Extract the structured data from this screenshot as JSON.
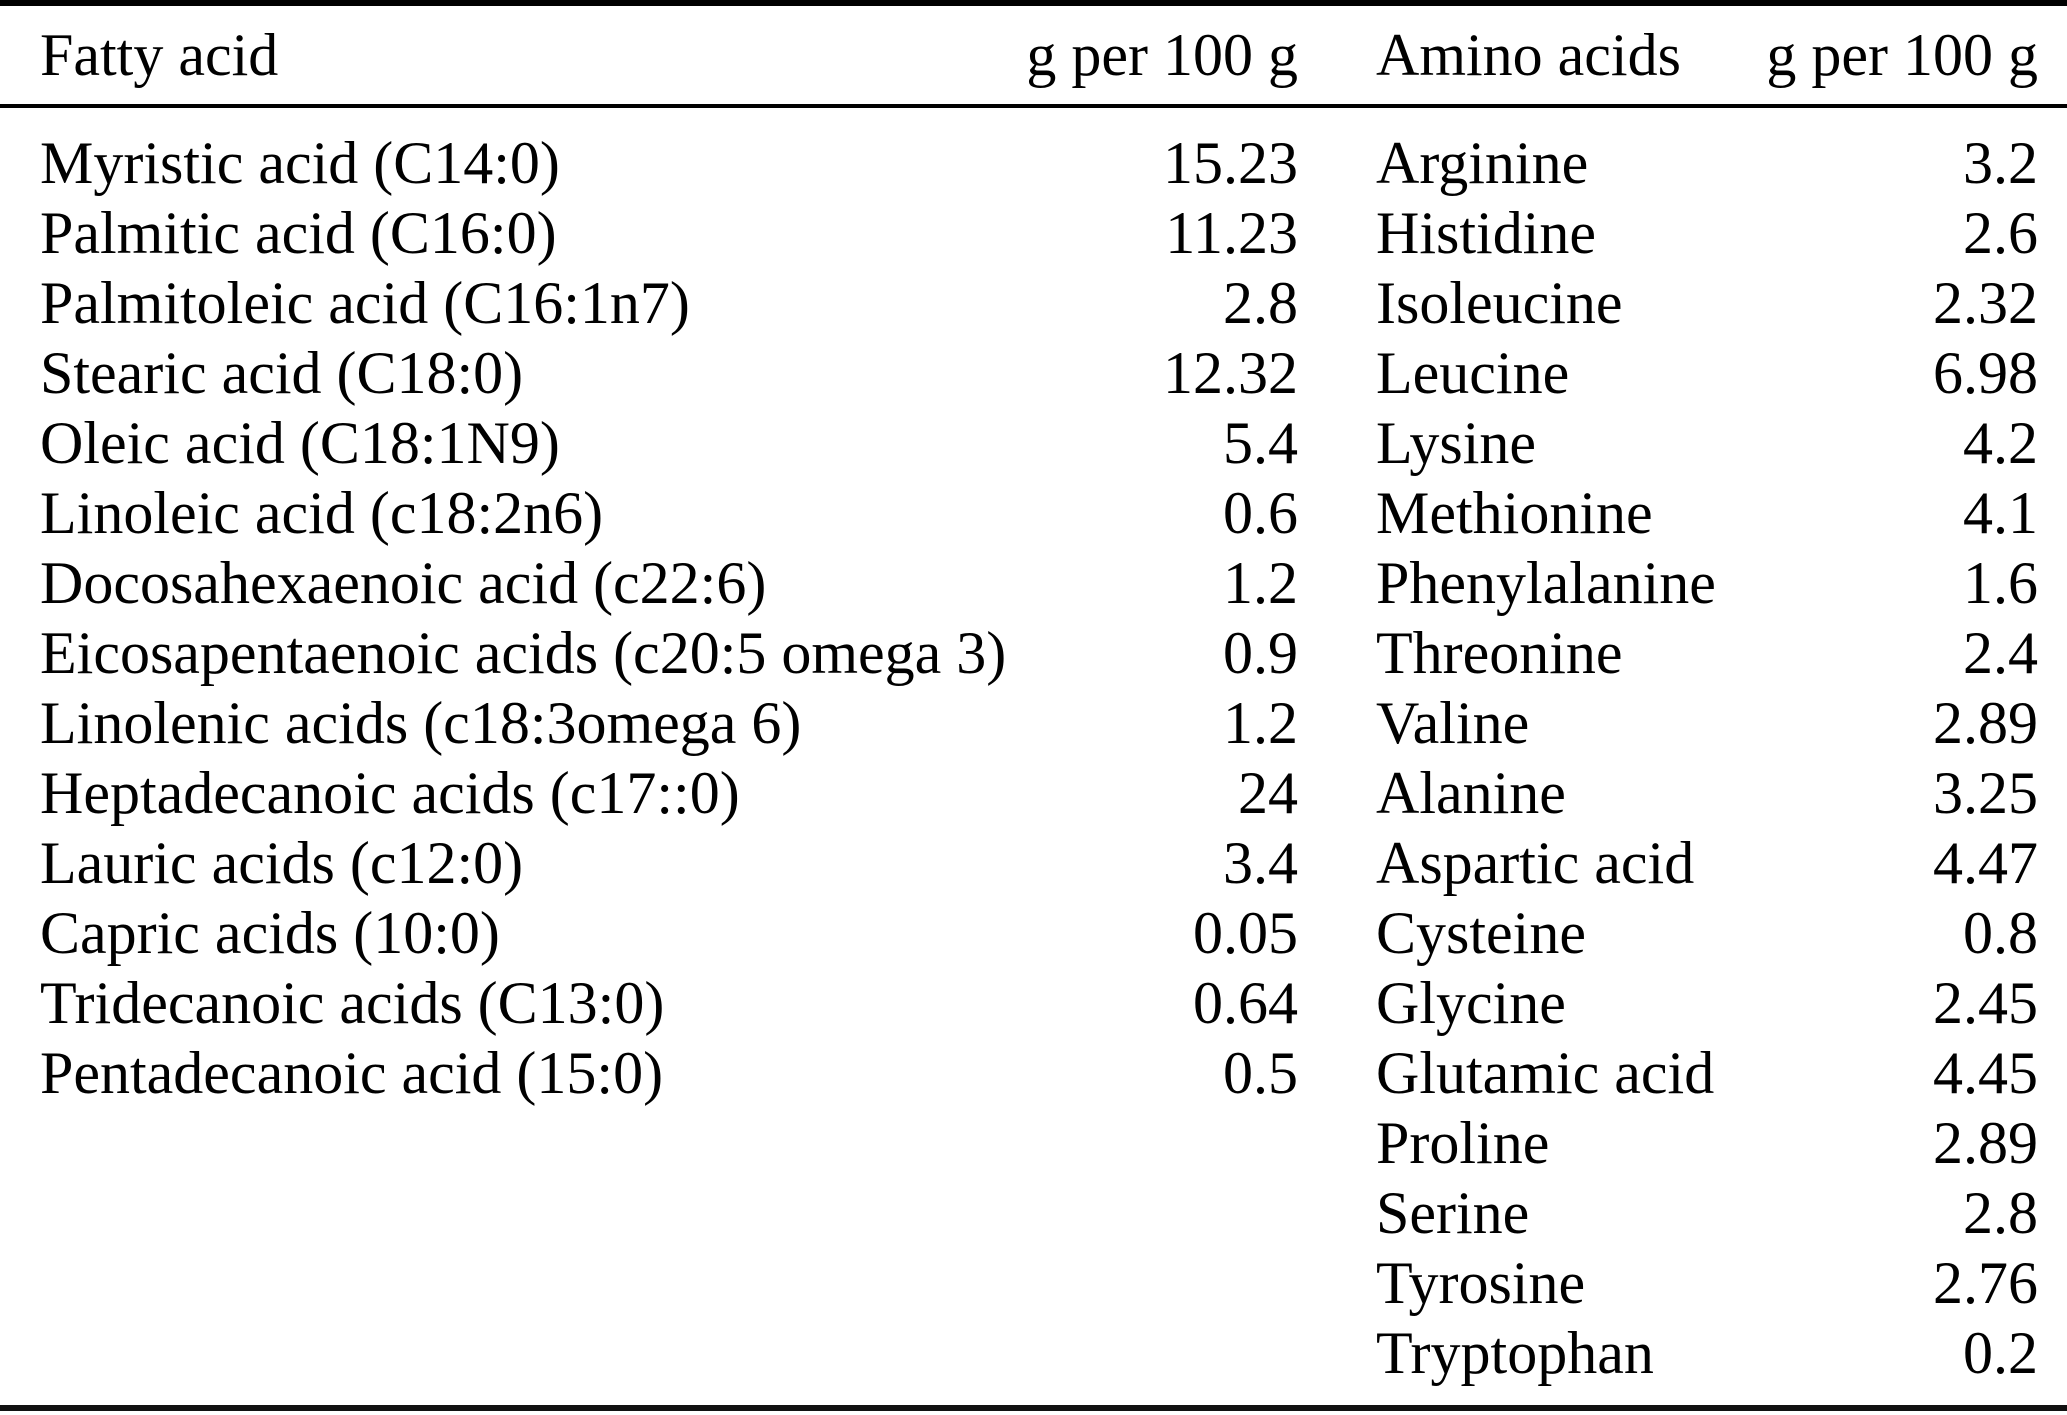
{
  "table": {
    "headers": {
      "fatty_col": "Fatty acid",
      "fatty_unit": "g per 100 g",
      "amino_col": "Amino acids",
      "amino_unit": "g per 100 g"
    },
    "fatty_acids": [
      {
        "name": "Myristic acid (C14:0)",
        "value": "15.23"
      },
      {
        "name": "Palmitic acid (C16:0)",
        "value": "11.23"
      },
      {
        "name": "Palmitoleic acid (C16:1n7)",
        "value": "2.8"
      },
      {
        "name": "Stearic acid (C18:0)",
        "value": "12.32"
      },
      {
        "name": "Oleic acid (C18:1N9)",
        "value": "5.4"
      },
      {
        "name": "Linoleic acid (c18:2n6)",
        "value": "0.6"
      },
      {
        "name": "Docosahexaenoic acid (c22:6)",
        "value": "1.2"
      },
      {
        "name": "Eicosapentaenoic acids (c20:5 omega 3)",
        "value": "0.9"
      },
      {
        "name": "Linolenic acids (c18:3omega 6)",
        "value": "1.2"
      },
      {
        "name": "Heptadecanoic acids (c17::0)",
        "value": "24"
      },
      {
        "name": "Lauric acids (c12:0)",
        "value": "3.4"
      },
      {
        "name": "Capric acids (10:0)",
        "value": "0.05"
      },
      {
        "name": "Tridecanoic acids (C13:0)",
        "value": "0.64"
      },
      {
        "name": "Pentadecanoic acid (15:0)",
        "value": "0.5"
      }
    ],
    "amino_acids": [
      {
        "name": "Arginine",
        "value": "3.2"
      },
      {
        "name": "Histidine",
        "value": "2.6"
      },
      {
        "name": "Isoleucine",
        "value": "2.32"
      },
      {
        "name": "Leucine",
        "value": "6.98"
      },
      {
        "name": "Lysine",
        "value": "4.2"
      },
      {
        "name": "Methionine",
        "value": "4.1"
      },
      {
        "name": "Phenylalanine",
        "value": "1.6"
      },
      {
        "name": "Threonine",
        "value": "2.4"
      },
      {
        "name": "Valine",
        "value": "2.89"
      },
      {
        "name": "Alanine",
        "value": "3.25"
      },
      {
        "name": "Aspartic acid",
        "value": "4.47"
      },
      {
        "name": "Cysteine",
        "value": "0.8"
      },
      {
        "name": "Glycine",
        "value": "2.45"
      },
      {
        "name": "Glutamic acid",
        "value": "4.45"
      },
      {
        "name": "Proline",
        "value": "2.89"
      },
      {
        "name": "Serine",
        "value": "2.8"
      },
      {
        "name": "Tyrosine",
        "value": "2.76"
      },
      {
        "name": "Tryptophan",
        "value": "0.2"
      }
    ]
  }
}
